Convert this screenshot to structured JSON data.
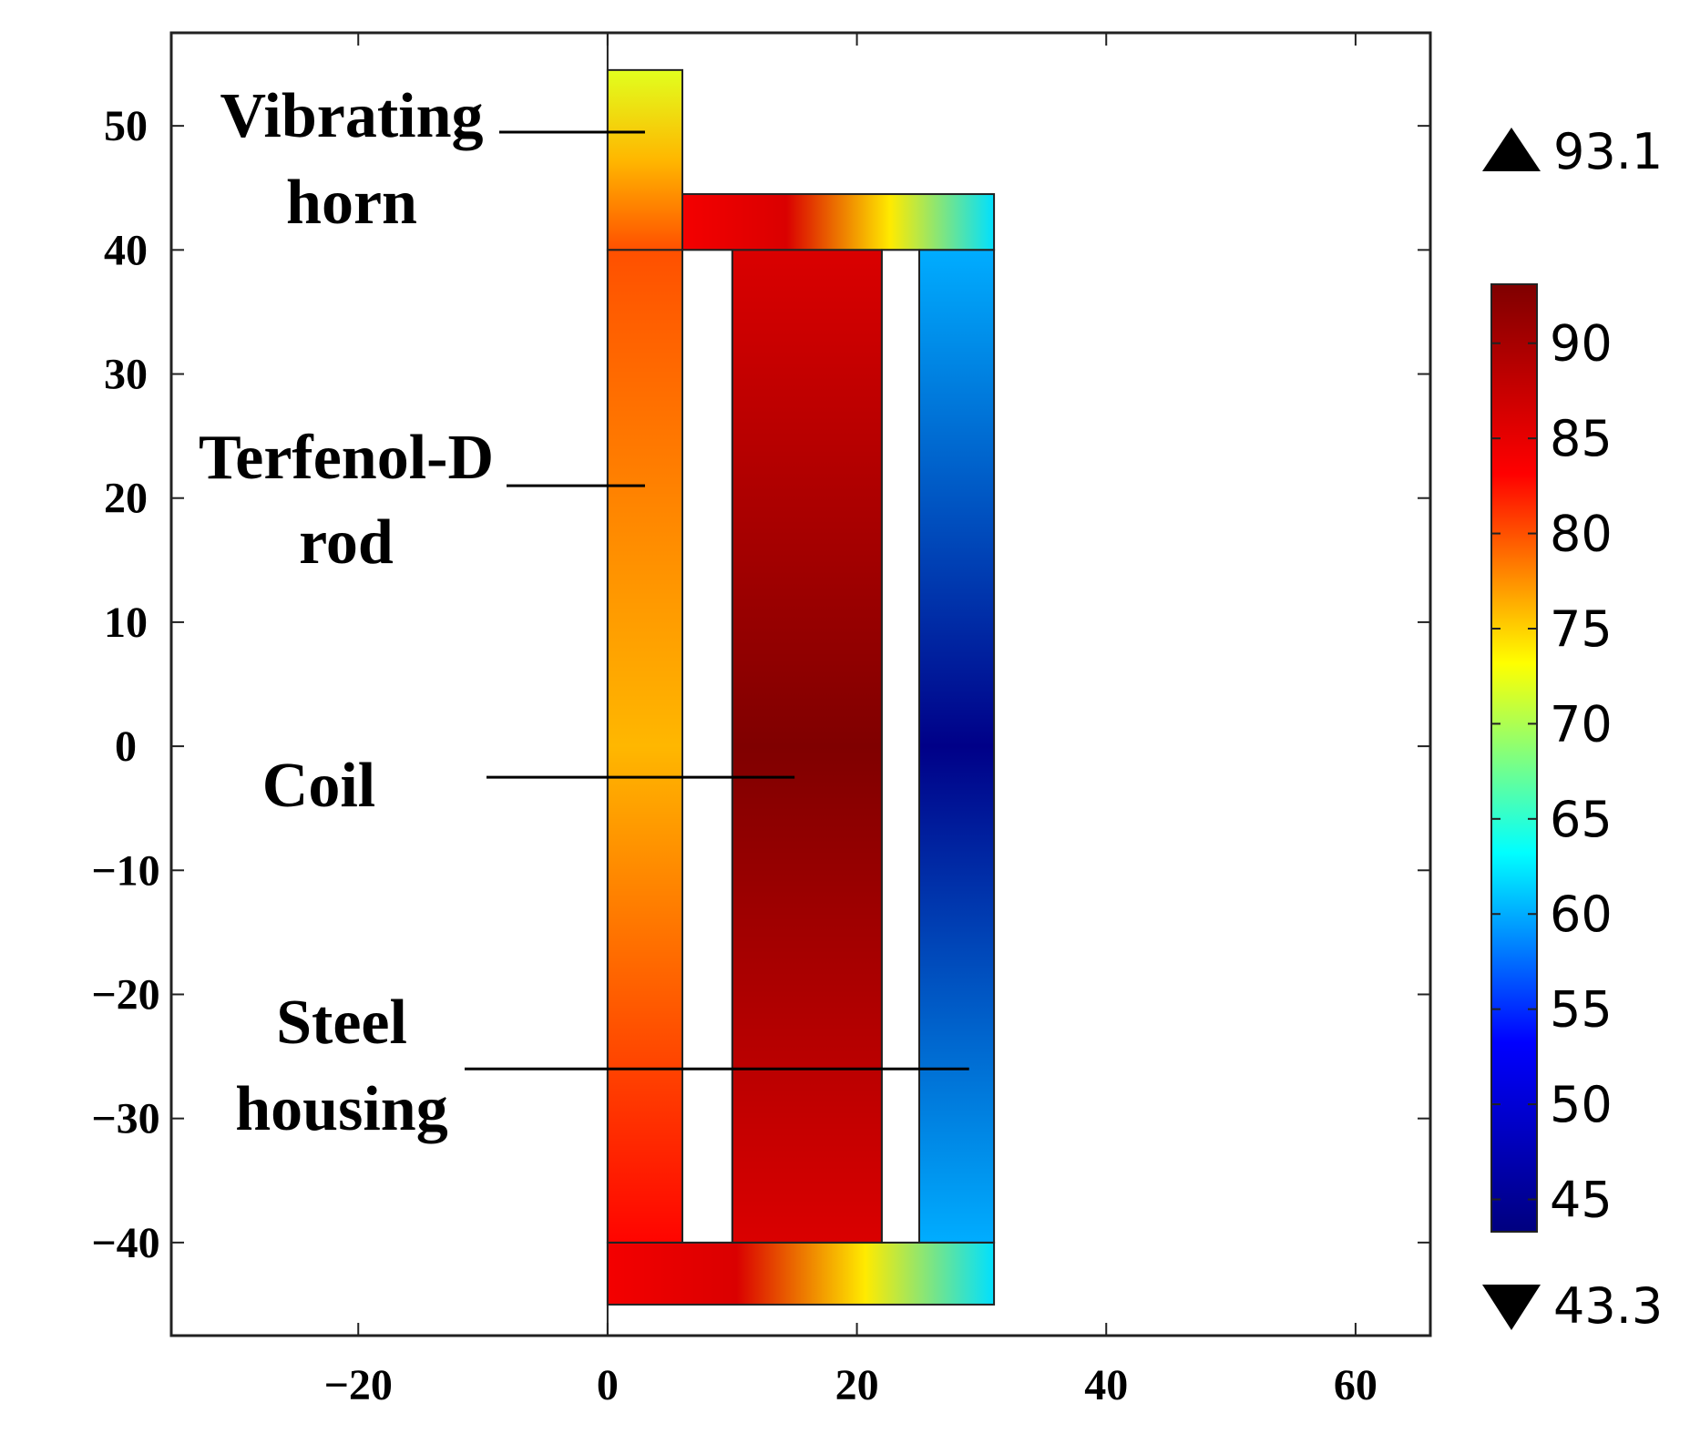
{
  "chart_data": {
    "type": "heatmap",
    "title": "",
    "xlabel": "",
    "ylabel": "",
    "xlim": [
      -35,
      66
    ],
    "ylim": [
      -47.5,
      57.5
    ],
    "x_ticks": [
      {
        "value": -20,
        "label": "−20"
      },
      {
        "value": 0,
        "label": "0"
      },
      {
        "value": 20,
        "label": "20"
      },
      {
        "value": 40,
        "label": "40"
      },
      {
        "value": 60,
        "label": "60"
      }
    ],
    "y_ticks": [
      {
        "value": 50,
        "label": "50"
      },
      {
        "value": 40,
        "label": "40"
      },
      {
        "value": 30,
        "label": "30"
      },
      {
        "value": 20,
        "label": "20"
      },
      {
        "value": 10,
        "label": "10"
      },
      {
        "value": 0,
        "label": "0"
      },
      {
        "value": -10,
        "label": "−10"
      },
      {
        "value": -20,
        "label": "−20"
      },
      {
        "value": -30,
        "label": "−30"
      },
      {
        "value": -40,
        "label": "−40"
      }
    ],
    "colorbar": {
      "min": 43.3,
      "max": 93.1,
      "max_label": "93.1",
      "min_label": "43.3",
      "ticks": [
        {
          "value": 90,
          "label": "90"
        },
        {
          "value": 85,
          "label": "85"
        },
        {
          "value": 80,
          "label": "80"
        },
        {
          "value": 75,
          "label": "75"
        },
        {
          "value": 70,
          "label": "70"
        },
        {
          "value": 65,
          "label": "65"
        },
        {
          "value": 60,
          "label": "60"
        },
        {
          "value": 55,
          "label": "55"
        },
        {
          "value": 50,
          "label": "50"
        },
        {
          "value": 45,
          "label": "45"
        }
      ],
      "colors": [
        "#00007f",
        "#0000ff",
        "#00ffff",
        "#ffff00",
        "#ff0000",
        "#7f0000"
      ]
    },
    "regions": [
      {
        "name": "vibrating-horn",
        "x": [
          0,
          6
        ],
        "y": [
          40,
          54.5
        ],
        "values_bottom_to_top": [
          80,
          76,
          72
        ]
      },
      {
        "name": "terfenol-d-rod",
        "x": [
          0,
          6
        ],
        "y": [
          -40,
          40
        ],
        "values_bottom_to_top": [
          83,
          76,
          80
        ]
      },
      {
        "name": "coil",
        "x": [
          10,
          22
        ],
        "y": [
          -40,
          40
        ],
        "values_bottom_to_top": [
          86,
          93,
          86
        ]
      },
      {
        "name": "steel-housing-top-plate",
        "x": [
          6,
          31
        ],
        "y": [
          40,
          44.5
        ],
        "values_left_to_right": [
          84,
          86,
          74,
          62
        ]
      },
      {
        "name": "steel-housing-bottom-plate",
        "x": [
          0,
          31
        ],
        "y": [
          -45,
          -40
        ],
        "values_left_to_right": [
          84,
          86,
          74,
          62
        ]
      },
      {
        "name": "steel-housing-outer-wall",
        "x": [
          25,
          31
        ],
        "y": [
          -40,
          40
        ],
        "values_bottom_to_top": [
          60,
          44,
          60
        ]
      }
    ],
    "annotations": [
      {
        "name": "vibrating-horn",
        "lines": [
          "Vibrating",
          "horn"
        ],
        "points_to": [
          3,
          49.5
        ]
      },
      {
        "name": "terfenol-d-rod",
        "lines": [
          "Terfenol-D",
          "rod"
        ],
        "points_to": [
          3,
          21
        ]
      },
      {
        "name": "coil",
        "lines": [
          "Coil"
        ],
        "points_to": [
          15,
          -2.5
        ]
      },
      {
        "name": "steel-housing",
        "lines": [
          "Steel",
          "housing"
        ],
        "points_to": [
          29,
          -26
        ]
      }
    ]
  }
}
